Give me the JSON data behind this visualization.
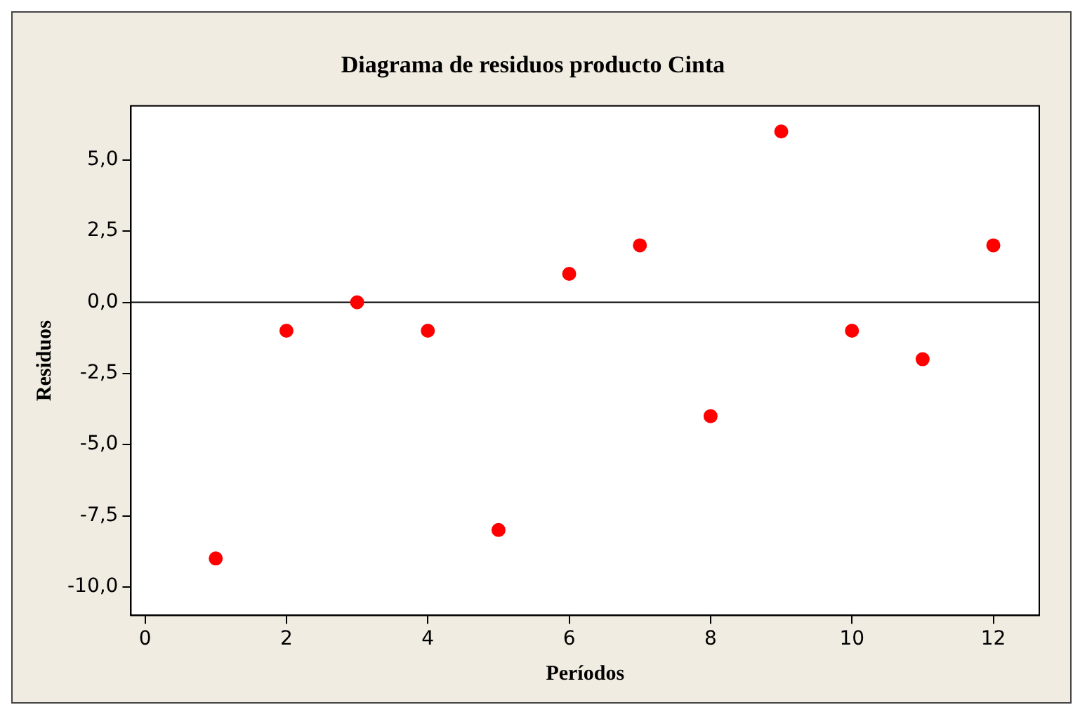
{
  "chart_data": {
    "type": "scatter",
    "title": "Diagrama de residuos producto Cinta",
    "xlabel": "Períodos",
    "ylabel": "Residuos",
    "x": [
      1,
      2,
      3,
      4,
      5,
      6,
      7,
      8,
      9,
      10,
      11,
      12
    ],
    "series": [
      {
        "color": "#ff0000",
        "values": [
          -9,
          -1,
          0,
          -1,
          -8,
          1,
          2,
          -4,
          6,
          -1,
          -2,
          2
        ]
      }
    ],
    "xlim": [
      -0.2,
      12.65
    ],
    "xticks": [
      0,
      2,
      4,
      6,
      8,
      10,
      12
    ],
    "ylim": [
      -11,
      6.9
    ],
    "yticks": [
      {
        "value": -10,
        "label": "-10,0"
      },
      {
        "value": -7.5,
        "label": "-7,5"
      },
      {
        "value": -5,
        "label": "-5,0"
      },
      {
        "value": -2.5,
        "label": "-2,5"
      },
      {
        "value": 0,
        "label": "0,0"
      },
      {
        "value": 2.5,
        "label": "2,5"
      },
      {
        "value": 5,
        "label": "5,0"
      }
    ],
    "ref_lines": [
      {
        "axis": "y",
        "value": 0,
        "color": "#000000"
      }
    ],
    "grid": false,
    "legend": false,
    "marker": "circle"
  }
}
